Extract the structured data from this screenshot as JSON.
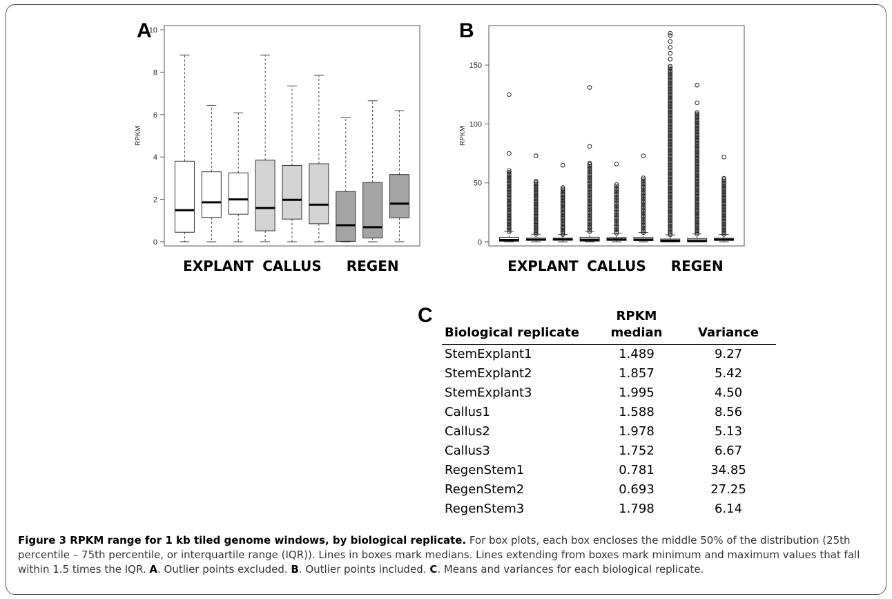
{
  "panels": {
    "a_label": "A",
    "b_label": "B",
    "c_label": "C"
  },
  "chart_data": [
    {
      "type": "box",
      "panel": "A",
      "ylabel": "RPKM",
      "ylim": [
        0,
        10
      ],
      "yticks": [
        0,
        2,
        4,
        6,
        8,
        10
      ],
      "group_labels": [
        "EXPLANT",
        "CALLUS",
        "REGEN"
      ],
      "fill_colors": [
        "#ffffff",
        "#ffffff",
        "#ffffff",
        "#d4d4d4",
        "#d4d4d4",
        "#d4d4d4",
        "#a4a4a4",
        "#a4a4a4",
        "#a4a4a4"
      ],
      "boxes": [
        {
          "min": 0,
          "q1": 0.45,
          "median": 1.49,
          "q3": 3.8,
          "max": 8.8
        },
        {
          "min": 0,
          "q1": 1.15,
          "median": 1.86,
          "q3": 3.3,
          "max": 6.43
        },
        {
          "min": 0,
          "q1": 1.3,
          "median": 2.0,
          "q3": 3.25,
          "max": 6.08
        },
        {
          "min": 0,
          "q1": 0.52,
          "median": 1.59,
          "q3": 3.85,
          "max": 8.8
        },
        {
          "min": 0,
          "q1": 1.07,
          "median": 1.98,
          "q3": 3.6,
          "max": 7.35
        },
        {
          "min": 0,
          "q1": 0.85,
          "median": 1.75,
          "q3": 3.68,
          "max": 7.85
        },
        {
          "min": 0,
          "q1": 0.02,
          "median": 0.78,
          "q3": 2.37,
          "max": 5.85
        },
        {
          "min": 0,
          "q1": 0.18,
          "median": 0.69,
          "q3": 2.8,
          "max": 6.65
        },
        {
          "min": 0,
          "q1": 1.13,
          "median": 1.8,
          "q3": 3.17,
          "max": 6.18
        }
      ]
    },
    {
      "type": "box",
      "panel": "B",
      "ylabel": "RPKM",
      "ylim": [
        0,
        180
      ],
      "yticks": [
        0,
        50,
        100,
        150
      ],
      "group_labels": [
        "EXPLANT",
        "CALLUS",
        "REGEN"
      ],
      "fill_colors": [
        "#ffffff",
        "#ffffff",
        "#ffffff",
        "#d4d4d4",
        "#d4d4d4",
        "#d4d4d4",
        "#a4a4a4",
        "#a4a4a4",
        "#a4a4a4"
      ],
      "boxes": [
        {
          "min": 0,
          "q1": 0.45,
          "median": 1.49,
          "q3": 3.8,
          "max": 8.8,
          "outlier_top": 61,
          "extra": [
            75,
            125
          ]
        },
        {
          "min": 0,
          "q1": 1.15,
          "median": 1.86,
          "q3": 3.3,
          "max": 6.43,
          "outlier_top": 52,
          "extra": [
            73
          ]
        },
        {
          "min": 0,
          "q1": 1.3,
          "median": 2.0,
          "q3": 3.25,
          "max": 6.08,
          "outlier_top": 47,
          "extra": [
            65
          ]
        },
        {
          "min": 0,
          "q1": 0.52,
          "median": 1.59,
          "q3": 3.85,
          "max": 8.8,
          "outlier_top": 67,
          "extra": [
            81,
            131
          ]
        },
        {
          "min": 0,
          "q1": 1.07,
          "median": 1.98,
          "q3": 3.6,
          "max": 7.35,
          "outlier_top": 49,
          "extra": [
            66
          ]
        },
        {
          "min": 0,
          "q1": 0.85,
          "median": 1.75,
          "q3": 3.68,
          "max": 7.85,
          "outlier_top": 55,
          "extra": [
            73
          ]
        },
        {
          "min": 0,
          "q1": 0.02,
          "median": 0.78,
          "q3": 2.37,
          "max": 5.85,
          "outlier_top": 150,
          "extra": [
            155,
            160,
            165,
            170,
            175,
            177
          ]
        },
        {
          "min": 0,
          "q1": 0.18,
          "median": 0.69,
          "q3": 2.8,
          "max": 6.65,
          "outlier_top": 110,
          "extra": [
            118,
            133
          ]
        },
        {
          "min": 0,
          "q1": 1.13,
          "median": 1.8,
          "q3": 3.17,
          "max": 6.18,
          "outlier_top": 55,
          "extra": [
            72
          ]
        }
      ]
    }
  ],
  "table": {
    "headers": [
      "Biological replicate",
      "RPKM median",
      "Variance"
    ],
    "header_rpkm_line1": "RPKM",
    "header_rpkm_line2": "median",
    "rows": [
      [
        "StemExplant1",
        "1.489",
        "9.27"
      ],
      [
        "StemExplant2",
        "1.857",
        "5.42"
      ],
      [
        "StemExplant3",
        "1.995",
        "4.50"
      ],
      [
        "Callus1",
        "1.588",
        "8.56"
      ],
      [
        "Callus2",
        "1.978",
        "5.13"
      ],
      [
        "Callus3",
        "1.752",
        "6.67"
      ],
      [
        "RegenStem1",
        "0.781",
        "34.85"
      ],
      [
        "RegenStem2",
        "0.693",
        "27.25"
      ],
      [
        "RegenStem3",
        "1.798",
        "6.14"
      ]
    ]
  },
  "caption": {
    "title": "Figure 3 RPKM range for 1 kb tiled genome windows, by biological replicate.",
    "text_1": " For box plots, each box encloses the middle 50% of the distribution (25th percentile – 75th percentile, or interquartile range (IQR)). Lines in boxes mark medians. Lines extending from boxes mark minimum and maximum values that fall within 1.5 times the IQR. ",
    "a": "A",
    "text_a": ". Outlier points excluded. ",
    "b": "B",
    "text_b": ". Outlier points included. ",
    "c": "C",
    "text_c": ". Means and variances for each biological replicate."
  }
}
